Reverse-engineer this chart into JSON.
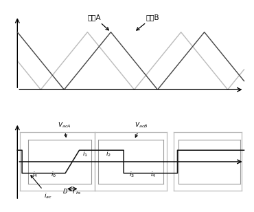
{
  "fig_width": 3.7,
  "fig_height": 3.08,
  "dpi": 100,
  "top_title_A": "载波A",
  "top_title_B": "载波B",
  "carrier_dark": "#444444",
  "carrier_light": "#bbbbbb",
  "box_outer": "#bbbbbb",
  "box_mid": "#999999",
  "box_inner": "#666666",
  "waveform_color": "#111111",
  "axis_color": "#000000",
  "background": "#ffffff",
  "annotation_color": "#111111"
}
